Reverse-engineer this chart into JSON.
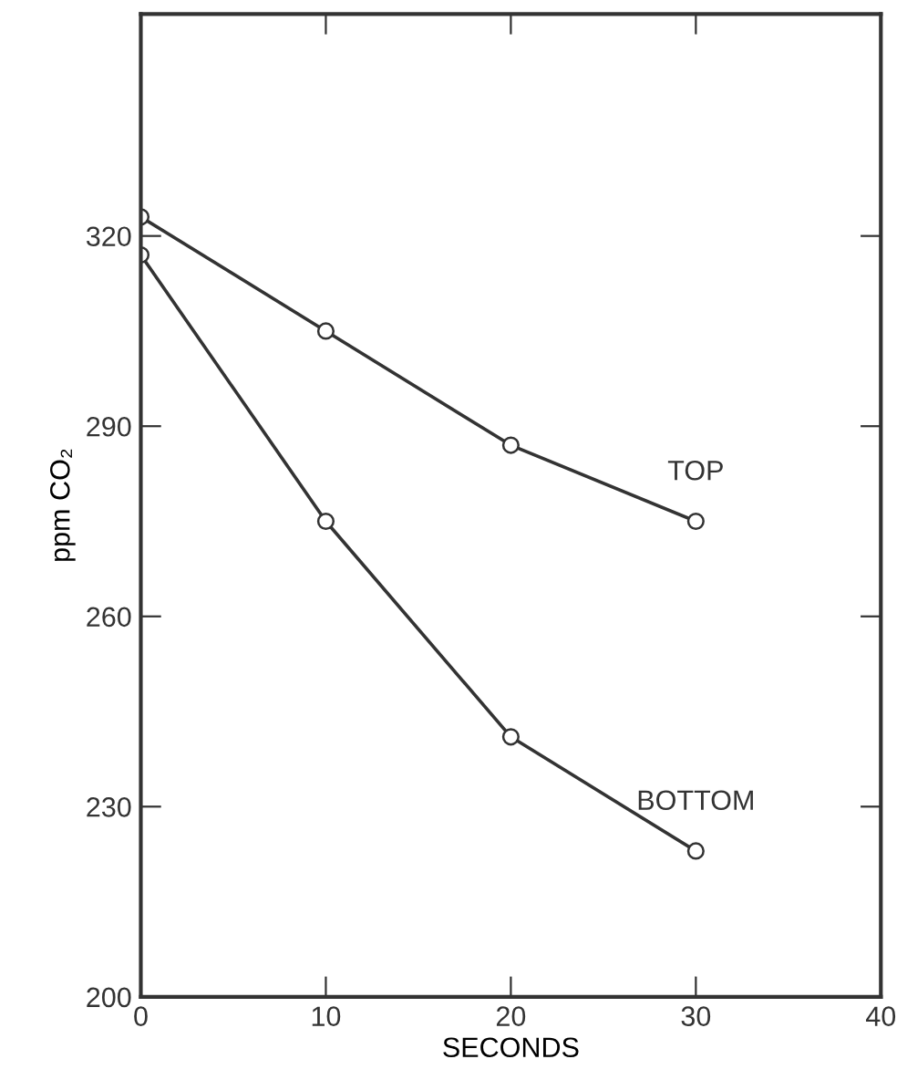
{
  "chart_data": {
    "type": "line",
    "xlabel": "SECONDS",
    "ylabel": "ppm CO₂",
    "x": [
      0,
      10,
      20,
      30
    ],
    "series": [
      {
        "name": "TOP",
        "color": "#333333",
        "values": [
          323,
          305,
          287,
          275
        ]
      },
      {
        "name": "BOTTOM",
        "color": "#333333",
        "values": [
          317,
          275,
          241,
          223
        ]
      }
    ],
    "xlim": [
      0,
      40
    ],
    "xticks": [
      0,
      10,
      20,
      30,
      40
    ],
    "ylim": [
      200,
      355
    ],
    "yticks": [
      200,
      230,
      260,
      290,
      320
    ],
    "marker": "circle",
    "line_style": "solid",
    "grid": false,
    "legend": false
  }
}
